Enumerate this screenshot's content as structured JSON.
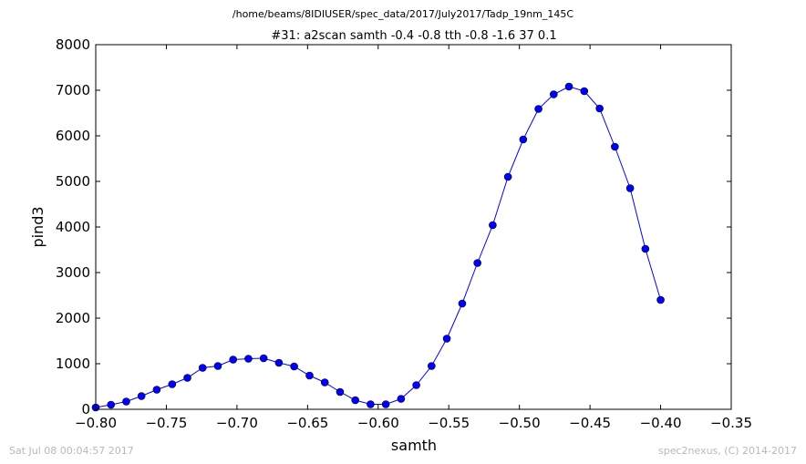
{
  "suptitle": "/home/beams/8IDIUSER/spec_data/2017/July2017/Tadp_19nm_145C",
  "footer_left": "Sat Jul 08 00:04:57 2017",
  "footer_right": "spec2nexus, (C) 2014-2017",
  "chart_data": {
    "type": "line",
    "title": "#31: a2scan  samth -0.4 -0.8  tth -0.8 -1.6  37 0.1",
    "xlabel": "samth",
    "ylabel": "pind3",
    "xlim": [
      -0.8,
      -0.35
    ],
    "ylim": [
      0,
      8000
    ],
    "xticks": [
      -0.8,
      -0.75,
      -0.7,
      -0.65,
      -0.6,
      -0.55,
      -0.5,
      -0.45,
      -0.4,
      -0.35
    ],
    "xtick_labels": [
      "−0.80",
      "−0.75",
      "−0.70",
      "−0.65",
      "−0.60",
      "−0.55",
      "−0.50",
      "−0.45",
      "−0.40",
      "−0.35"
    ],
    "yticks": [
      0,
      1000,
      2000,
      3000,
      4000,
      5000,
      6000,
      7000,
      8000
    ],
    "ytick_labels": [
      "0",
      "1000",
      "2000",
      "3000",
      "4000",
      "5000",
      "6000",
      "7000",
      "8000"
    ],
    "grid": false,
    "line_color": "#0000ff",
    "marker": "circle",
    "series": [
      {
        "x": [
          -0.8,
          -0.7892,
          -0.7784,
          -0.7676,
          -0.7568,
          -0.7459,
          -0.7351,
          -0.7243,
          -0.7135,
          -0.7027,
          -0.6919,
          -0.6811,
          -0.6703,
          -0.6595,
          -0.6486,
          -0.6378,
          -0.627,
          -0.6162,
          -0.6054,
          -0.5946,
          -0.5838,
          -0.573,
          -0.5622,
          -0.5514,
          -0.5405,
          -0.5297,
          -0.5189,
          -0.5081,
          -0.4973,
          -0.4865,
          -0.4757,
          -0.4649,
          -0.4541,
          -0.4432,
          -0.4324,
          -0.4216,
          -0.4108,
          -0.4
        ],
        "y": [
          40,
          100,
          170,
          290,
          430,
          550,
          690,
          910,
          950,
          1090,
          1110,
          1120,
          1020,
          940,
          740,
          590,
          380,
          200,
          110,
          110,
          230,
          530,
          950,
          1550,
          2320,
          3210,
          4040,
          5100,
          5920,
          6590,
          6910,
          7080,
          6980,
          6600,
          5760,
          4850,
          3520,
          2400
        ]
      }
    ]
  }
}
